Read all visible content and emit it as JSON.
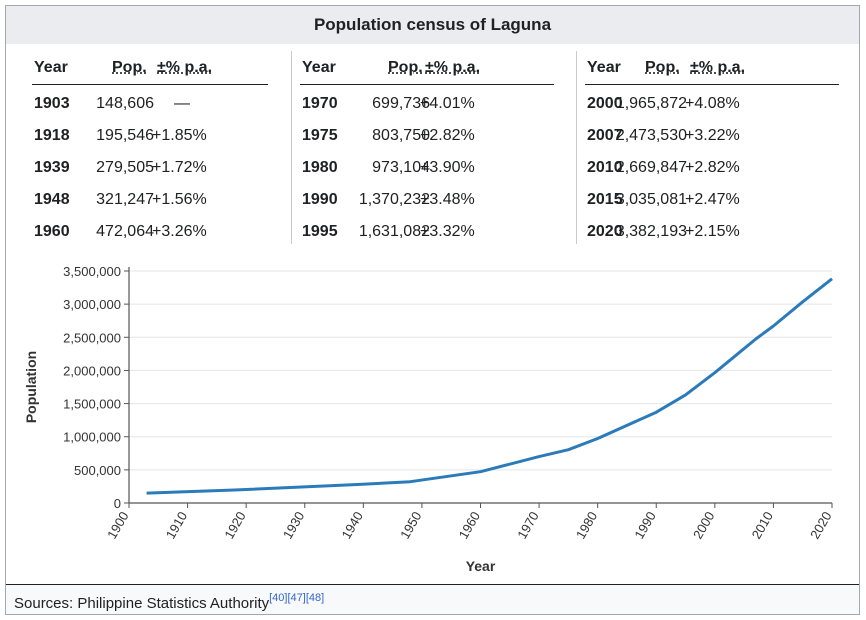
{
  "title": "Population census of Laguna",
  "table": {
    "header_year": "Year",
    "header_pop": "Pop.",
    "header_change": "±% p.a.",
    "columns": [
      [
        {
          "year": "1903",
          "pop": "148,606",
          "change": "—"
        },
        {
          "year": "1918",
          "pop": "195,546",
          "change": "+1.85%"
        },
        {
          "year": "1939",
          "pop": "279,505",
          "change": "+1.72%"
        },
        {
          "year": "1948",
          "pop": "321,247",
          "change": "+1.56%"
        },
        {
          "year": "1960",
          "pop": "472,064",
          "change": "+3.26%"
        }
      ],
      [
        {
          "year": "1970",
          "pop": "699,736",
          "change": "+4.01%"
        },
        {
          "year": "1975",
          "pop": "803,750",
          "change": "+2.82%"
        },
        {
          "year": "1980",
          "pop": "973,104",
          "change": "+3.90%"
        },
        {
          "year": "1990",
          "pop": "1,370,232",
          "change": "+3.48%"
        },
        {
          "year": "1995",
          "pop": "1,631,082",
          "change": "+3.32%"
        }
      ],
      [
        {
          "year": "2000",
          "pop": "1,965,872",
          "change": "+4.08%"
        },
        {
          "year": "2007",
          "pop": "2,473,530",
          "change": "+3.22%"
        },
        {
          "year": "2010",
          "pop": "2,669,847",
          "change": "+2.82%"
        },
        {
          "year": "2015",
          "pop": "3,035,081",
          "change": "+2.47%"
        },
        {
          "year": "2020",
          "pop": "3,382,193",
          "change": "+2.15%"
        }
      ]
    ]
  },
  "chart_data": {
    "type": "line",
    "xlabel": "Year",
    "ylabel": "Population",
    "xlim": [
      1900,
      2020
    ],
    "ylim": [
      0,
      3500000
    ],
    "x_ticks": [
      1900,
      1910,
      1920,
      1930,
      1940,
      1950,
      1960,
      1970,
      1980,
      1990,
      2000,
      2010,
      2020
    ],
    "y_ticks": [
      0,
      500000,
      1000000,
      1500000,
      2000000,
      2500000,
      3000000,
      3500000
    ],
    "y_tick_labels": [
      "0",
      "500,000",
      "1,000,000",
      "1,500,000",
      "2,000,000",
      "2,500,000",
      "3,000,000",
      "3,500,000"
    ],
    "grid": true,
    "line_color": "#2b7bba",
    "x": [
      1903,
      1918,
      1939,
      1948,
      1960,
      1970,
      1975,
      1980,
      1990,
      1995,
      2000,
      2007,
      2010,
      2015,
      2020
    ],
    "y": [
      148606,
      195546,
      279505,
      321247,
      472064,
      699736,
      803750,
      973104,
      1370232,
      1631082,
      1965872,
      2473530,
      2669847,
      3035081,
      3382193
    ]
  },
  "sources": {
    "text": "Sources: Philippine Statistics Authority",
    "refs": "[40][47][48]"
  }
}
